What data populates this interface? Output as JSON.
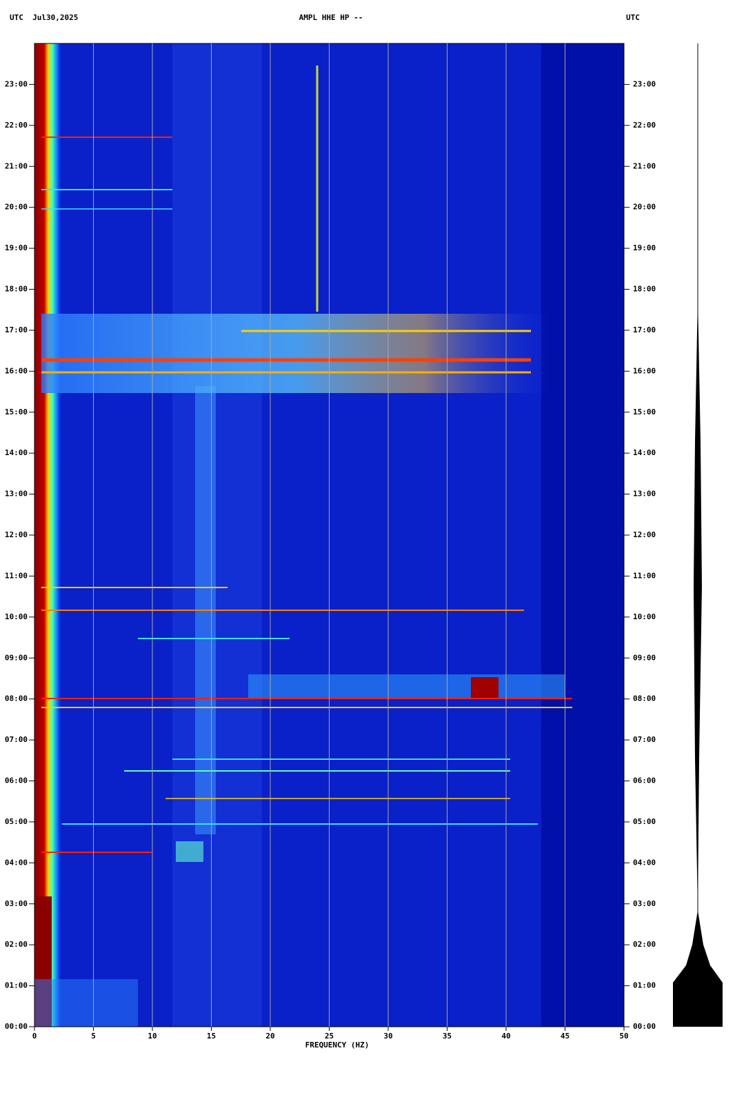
{
  "chart_data": {
    "type": "spectrogram",
    "title_left": "UTC  Jul30,2025",
    "title": "AMPL HHE HP --",
    "title_right": "UTC",
    "xlabel": "FREQUENCY (HZ)",
    "xlim": [
      0,
      50
    ],
    "xticks": [
      0,
      5,
      10,
      15,
      20,
      25,
      30,
      35,
      40,
      45,
      50
    ],
    "ylim": [
      0,
      24
    ],
    "yticks": [
      {
        "value": 0,
        "label": "00:00"
      },
      {
        "value": 1,
        "label": "01:00"
      },
      {
        "value": 2,
        "label": "02:00"
      },
      {
        "value": 3,
        "label": "03:00"
      },
      {
        "value": 4,
        "label": "04:00"
      },
      {
        "value": 5,
        "label": "05:00"
      },
      {
        "value": 6,
        "label": "06:00"
      },
      {
        "value": 7,
        "label": "07:00"
      },
      {
        "value": 8,
        "label": "08:00"
      },
      {
        "value": 9,
        "label": "09:00"
      },
      {
        "value": 10,
        "label": "10:00"
      },
      {
        "value": 11,
        "label": "11:00"
      },
      {
        "value": 12,
        "label": "12:00"
      },
      {
        "value": 13,
        "label": "13:00"
      },
      {
        "value": 14,
        "label": "14:00"
      },
      {
        "value": 15,
        "label": "15:00"
      },
      {
        "value": 16,
        "label": "16:00"
      },
      {
        "value": 17,
        "label": "17:00"
      },
      {
        "value": 18,
        "label": "18:00"
      },
      {
        "value": 19,
        "label": "19:00"
      },
      {
        "value": 20,
        "label": "20:00"
      },
      {
        "value": 21,
        "label": "21:00"
      },
      {
        "value": 22,
        "label": "22:00"
      },
      {
        "value": 23,
        "label": "23:00"
      }
    ],
    "grid": true
  }
}
